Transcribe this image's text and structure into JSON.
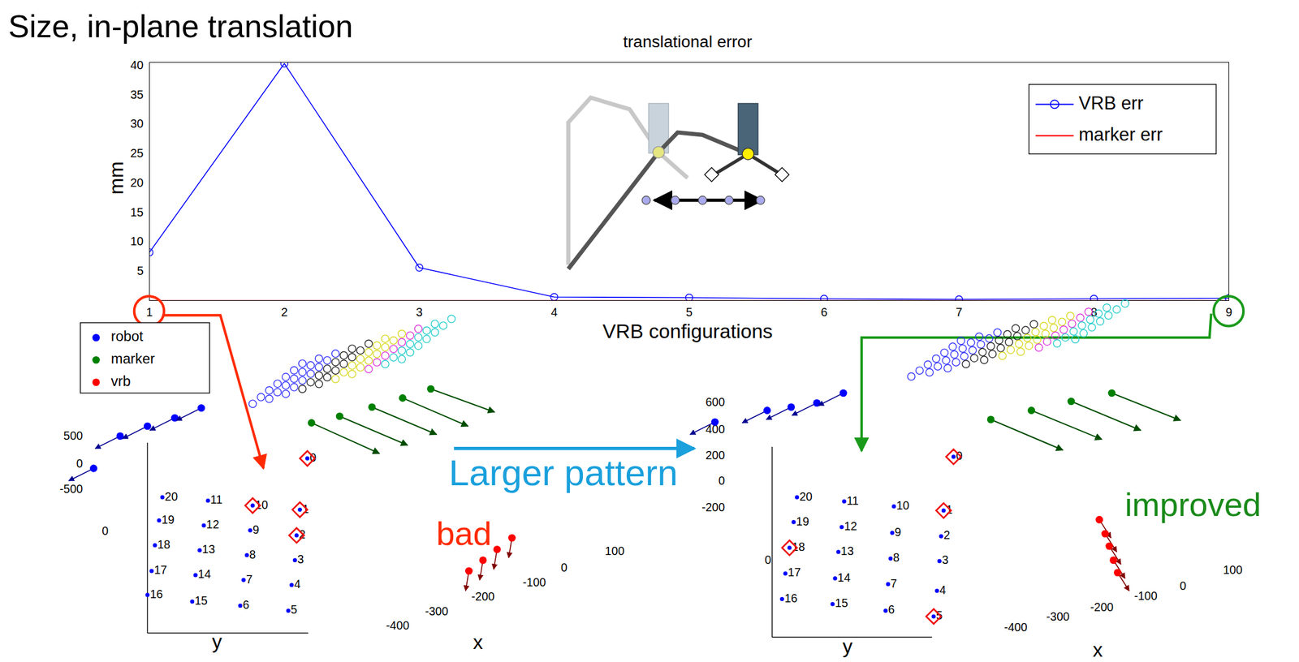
{
  "title": "Size, in-plane translation",
  "annotation": "Larger pattern",
  "chart_data": [
    {
      "type": "line",
      "title": "translational error",
      "x_label": "VRB configurations",
      "y_label": "mm",
      "x": [
        1,
        2,
        3,
        4,
        5,
        6,
        7,
        8,
        9
      ],
      "series": [
        {
          "name": "VRB err",
          "color": "#0000ff",
          "marker": "circle",
          "values": [
            8.2,
            40.3,
            5.6,
            0.6,
            0.5,
            0.3,
            0.2,
            0.3,
            0.4
          ]
        },
        {
          "name": "marker err",
          "color": "#ff0000",
          "values": [
            0,
            0,
            0,
            0,
            0,
            0,
            0,
            0,
            0
          ]
        }
      ],
      "xlim": [
        1,
        9
      ],
      "xticks": [
        1,
        2,
        3,
        4,
        5,
        6,
        7,
        8,
        9
      ],
      "ylim": [
        0,
        40.5
      ],
      "yticks": [
        5,
        10,
        15,
        20,
        25,
        30,
        35,
        40
      ],
      "legend": "upper right",
      "grid": false
    },
    {
      "type": "scatter3d",
      "x_label": "x",
      "y_label": "y",
      "xticks": [
        100,
        0,
        -100,
        -200,
        -300,
        -400
      ],
      "yticks": [
        0
      ],
      "zticks": [
        500,
        0,
        -500
      ],
      "series": [
        {
          "name": "robot",
          "color": "#0000ff"
        },
        {
          "name": "marker",
          "color": "#008000"
        },
        {
          "name": "vrb",
          "color": "#ff0000"
        }
      ],
      "legend": "upper left",
      "point_labels": [
        20,
        19,
        18,
        17,
        16,
        11,
        12,
        13,
        14,
        15,
        10,
        9,
        8,
        7,
        6,
        0,
        1,
        2,
        3,
        4,
        5
      ],
      "highlighted": [
        10,
        0,
        1,
        2
      ],
      "configuration": 1,
      "annotation": {
        "text": "bad",
        "color": "#ff2a00"
      }
    },
    {
      "type": "scatter3d",
      "x_label": "x",
      "y_label": "y",
      "xticks": [
        100,
        0,
        -100,
        -200,
        -300,
        -400
      ],
      "yticks": [
        0
      ],
      "zticks": [
        600,
        400,
        200,
        0,
        -200
      ],
      "series": [
        {
          "name": "robot",
          "color": "#0000ff"
        },
        {
          "name": "marker",
          "color": "#008000"
        },
        {
          "name": "vrb",
          "color": "#ff0000"
        }
      ],
      "point_labels": [
        20,
        19,
        18,
        17,
        16,
        11,
        12,
        13,
        14,
        15,
        10,
        9,
        8,
        7,
        6,
        0,
        1,
        2,
        3,
        4,
        5
      ],
      "highlighted": [
        0,
        1,
        18,
        5
      ],
      "configuration": 9,
      "annotation": {
        "text": "improved",
        "color": "#1a8a1a"
      }
    }
  ]
}
